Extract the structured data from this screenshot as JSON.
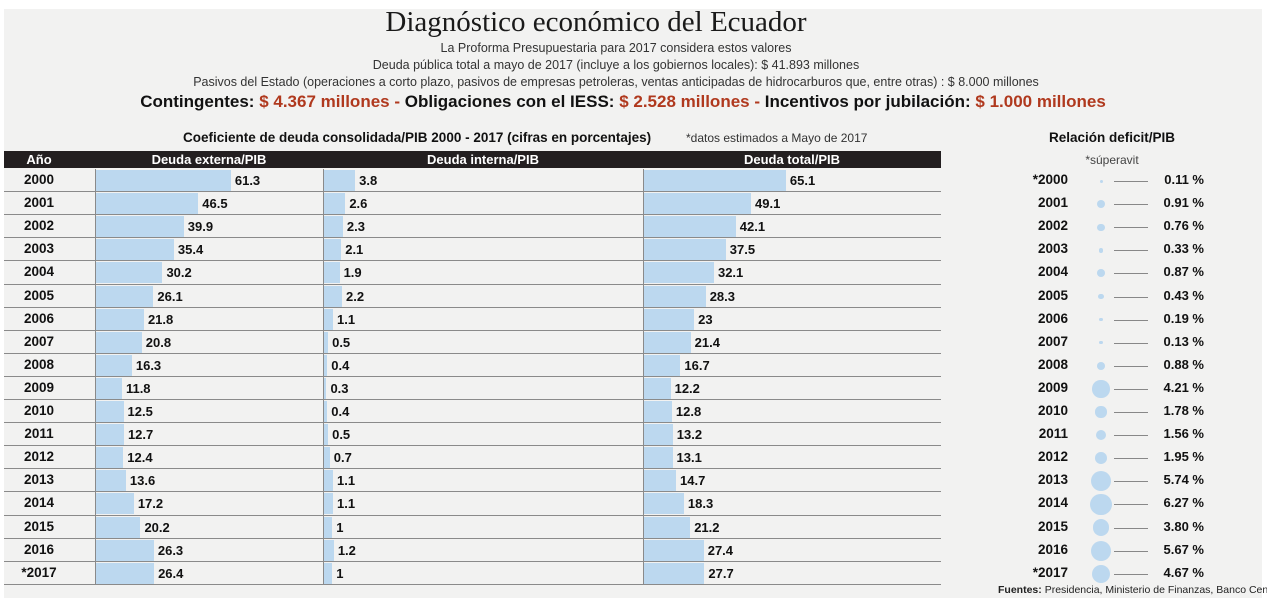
{
  "header": {
    "title": "Diagnóstico económico del Ecuador",
    "line1": "La Proforma Presupuestaria para 2017 considera estos valores",
    "line2": "Deuda pública total a mayo de 2017  (incluye a los gobiernos locales): $ 41.893 millones",
    "line3": "Pasivos del Estado (operaciones a corto plazo, pasivos de empresas petroleras, ventas anticipadas de hidrocarburos que, entre otras) : $ 8.000 millones",
    "contingentes_label": "Contingentes:",
    "contingentes_value": "$ 4.367 millones -",
    "iess_label": "Obligaciones con el IESS:",
    "iess_value": "$ 2.528 millones -",
    "jubilacion_label": "Incentivos por jubilación:",
    "jubilacion_value": "$ 1.000 millones"
  },
  "chart_data": [
    {
      "type": "bar",
      "title": "Coeficiente de deuda consolidada/PIB 2000 - 2017 (cifras en porcentajes)",
      "note": "*datos estimados a Mayo de 2017",
      "year_header": "Año",
      "categories": [
        "2000",
        "2001",
        "2002",
        "2003",
        "2004",
        "2005",
        "2006",
        "2007",
        "2008",
        "2009",
        "2010",
        "2011",
        "2012",
        "2013",
        "2014",
        "2015",
        "2016",
        "*2017"
      ],
      "series": [
        {
          "name": "Deuda externa/PIB",
          "values": [
            61.3,
            46.5,
            39.9,
            35.4,
            30.2,
            26.1,
            21.8,
            20.8,
            16.3,
            11.8,
            12.5,
            12.7,
            12.4,
            13.6,
            17.2,
            20.2,
            26.3,
            26.4
          ]
        },
        {
          "name": "Deuda interna/PIB",
          "values": [
            3.8,
            2.6,
            2.3,
            2.1,
            1.9,
            2.2,
            1.1,
            0.5,
            0.4,
            0.3,
            0.4,
            0.5,
            0.7,
            1.1,
            1.1,
            1,
            1.2,
            1
          ]
        },
        {
          "name": "Deuda total/PIB",
          "values": [
            65.1,
            49.1,
            42.1,
            37.5,
            32.1,
            28.3,
            23,
            21.4,
            16.7,
            12.2,
            12.8,
            13.2,
            13.1,
            14.7,
            18.3,
            21.2,
            27.4,
            27.7
          ]
        }
      ],
      "labels": {
        "ext": [
          "61.3",
          "46.5",
          "39.9",
          "35.4",
          "30.2",
          "26.1",
          "21.8",
          "20.8",
          "16.3",
          "11.8",
          "12.5",
          "12.7",
          "12.4",
          "13.6",
          "17.2",
          "20.2",
          "26.3",
          "26.4"
        ],
        "int": [
          "3.8",
          "2.6",
          "2.3",
          "2.1",
          "1.9",
          "2.2",
          "1.1",
          "0.5",
          "0.4",
          "0.3",
          "0.4",
          "0.5",
          "0.7",
          "1.1",
          "1.1",
          "1",
          "1.2",
          "1"
        ],
        "tot": [
          "65.1",
          "49.1",
          "42.1",
          "37.5",
          "32.1",
          "28.3",
          "23",
          "21.4",
          "16.7",
          "12.2",
          "12.8",
          "13.2",
          "13.1",
          "14.7",
          "18.3",
          "21.2",
          "27.4",
          "27.7"
        ]
      }
    },
    {
      "type": "scatter",
      "title": "Relación deficit/PIB",
      "note": "*súperavit",
      "categories": [
        "*2000",
        "2001",
        "2002",
        "2003",
        "2004",
        "2005",
        "2006",
        "2007",
        "2008",
        "2009",
        "2010",
        "2011",
        "2012",
        "2013",
        "2014",
        "2015",
        "2016",
        "*2017"
      ],
      "values": [
        0.11,
        0.91,
        0.76,
        0.33,
        0.87,
        0.43,
        0.19,
        0.13,
        0.88,
        4.21,
        1.78,
        1.56,
        1.95,
        5.74,
        6.27,
        3.8,
        5.67,
        4.67
      ],
      "value_labels": [
        "0.11 %",
        "0.91 %",
        "0.76 %",
        "0.33 %",
        "0.87 %",
        "0.43 %",
        "0.19 %",
        "0.13 %",
        "0.88 %",
        "4.21 %",
        "1.78 %",
        "1.56 %",
        "1.95 %",
        "5.74 %",
        "6.27 %",
        "3.80 %",
        "5.67 %",
        "4.67 %"
      ]
    }
  ],
  "footer": {
    "sources_label": "Fuentes:",
    "sources_text": "Presidencia, Ministerio de Finanzas, Banco Central"
  },
  "colors": {
    "bar": "#bcd8ef",
    "header_bg": "#231f20",
    "accent_red": "#b0391e",
    "panel_bg": "#f2f2f1"
  }
}
